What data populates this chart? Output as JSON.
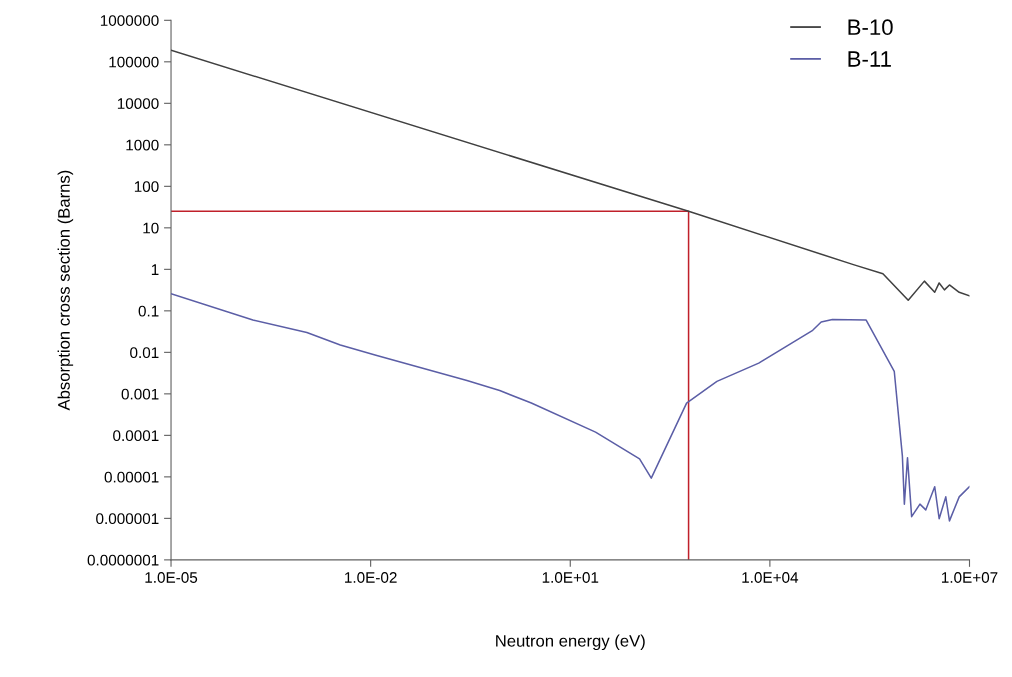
{
  "chart_data": {
    "type": "line",
    "xlabel": "Neutron energy (eV)",
    "ylabel": "Absorption cross section (Barns)",
    "log": "xy",
    "legend": "top right",
    "grid": false,
    "marker": "none",
    "line_style": "solid",
    "xlim": [
      1e-05,
      10000000.0
    ],
    "ylim": [
      1e-07,
      1000000.0
    ],
    "xticks": [
      {
        "value": 1e-05,
        "label": "1.0E-05"
      },
      {
        "value": 0.01,
        "label": "1.0E-02"
      },
      {
        "value": 10.0,
        "label": "1.0E+01"
      },
      {
        "value": 10000.0,
        "label": "1.0E+04"
      },
      {
        "value": 10000000.0,
        "label": "1.0E+07"
      }
    ],
    "yticks": [
      {
        "value": 1e-07,
        "label": "0.0000001"
      },
      {
        "value": 1e-06,
        "label": "0.000001"
      },
      {
        "value": 1e-05,
        "label": "0.00001"
      },
      {
        "value": 0.0001,
        "label": "0.0001"
      },
      {
        "value": 0.001,
        "label": "0.001"
      },
      {
        "value": 0.01,
        "label": "0.01"
      },
      {
        "value": 0.1,
        "label": "0.1"
      },
      {
        "value": 1,
        "label": "1"
      },
      {
        "value": 10,
        "label": "10"
      },
      {
        "value": 100,
        "label": "100"
      },
      {
        "value": 1000,
        "label": "1000"
      },
      {
        "value": 10000,
        "label": "10000"
      },
      {
        "value": 100000,
        "label": "100000"
      },
      {
        "value": 1000000,
        "label": "1000000"
      }
    ],
    "series": [
      {
        "name": "B-10",
        "color": "#404040",
        "x": [
          1e-05,
          600,
          180000.0,
          500000.0,
          1200000.0,
          2100000.0,
          3000000.0,
          3500000.0,
          4200000.0,
          5000000.0,
          7000000.0,
          10000000.0
        ],
        "values": [
          190000.0,
          25,
          1.3,
          0.78,
          0.18,
          0.52,
          0.28,
          0.47,
          0.32,
          0.42,
          0.28,
          0.23
        ]
      },
      {
        "name": "B-11",
        "color": "#5b5ea6",
        "x": [
          1e-05,
          0.00017,
          0.0011,
          0.0035,
          0.012,
          0.28,
          0.87,
          2.6,
          24,
          110,
          165,
          560,
          1600,
          6800,
          44000.0,
          59000.0,
          87000.0,
          280000.0,
          740000.0,
          980000.0,
          1050000.0,
          1170000.0,
          1350000.0,
          1800000.0,
          2200000.0,
          3000000.0,
          3500000.0,
          4400000.0,
          5000000.0,
          7000000.0,
          10000000.0
        ],
        "values": [
          0.26,
          0.06,
          0.03,
          0.015,
          0.0085,
          0.0021,
          0.0012,
          0.0006,
          0.00012,
          2.7e-05,
          9.3e-06,
          0.0006,
          0.002,
          0.0055,
          0.034,
          0.054,
          0.062,
          0.06,
          0.0035,
          3.2e-05,
          2.2e-06,
          2.9e-05,
          1.1e-06,
          2.2e-06,
          1.6e-06,
          5.8e-06,
          9.8e-07,
          3.3e-06,
          8.7e-07,
          3.3e-06,
          5.8e-06
        ]
      },
      {
        "color": "#c0202a",
        "x": [
          1e-05,
          600,
          600
        ],
        "values": [
          25,
          25,
          1e-07
        ]
      }
    ]
  }
}
